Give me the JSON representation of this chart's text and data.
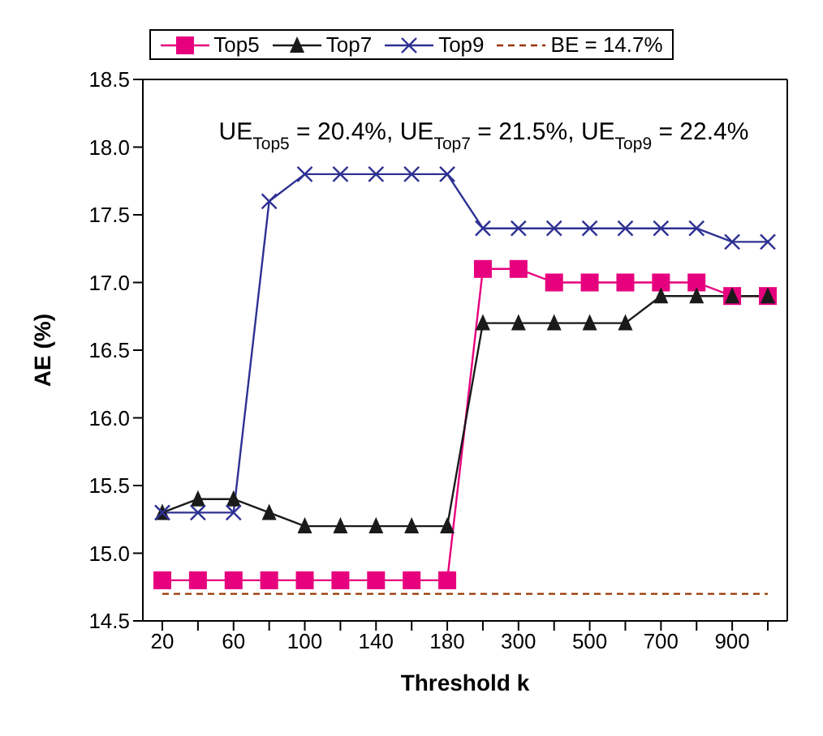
{
  "chart_data": {
    "type": "line",
    "xlabel": "Threshold k",
    "ylabel": "AE (%)",
    "categories": [
      "20",
      null,
      "60",
      null,
      "100",
      null,
      "140",
      null,
      "180",
      null,
      "300",
      null,
      "500",
      null,
      "700",
      null,
      "900",
      null
    ],
    "series": [
      {
        "name": "Top5",
        "color": "#e6007e",
        "marker": "square",
        "values": [
          14.8,
          14.8,
          14.8,
          14.8,
          14.8,
          14.8,
          14.8,
          14.8,
          14.8,
          17.1,
          17.1,
          17.0,
          17.0,
          17.0,
          17.0,
          17.0,
          16.9,
          16.9
        ]
      },
      {
        "name": "Top7",
        "color": "#1a1a1a",
        "marker": "triangle",
        "values": [
          15.3,
          15.4,
          15.4,
          15.3,
          15.2,
          15.2,
          15.2,
          15.2,
          15.2,
          16.7,
          16.7,
          16.7,
          16.7,
          16.7,
          16.9,
          16.9,
          16.9,
          16.9
        ]
      },
      {
        "name": "Top9",
        "color": "#2e3192",
        "marker": "cross",
        "values": [
          15.3,
          15.3,
          15.3,
          17.6,
          17.8,
          17.8,
          17.8,
          17.8,
          17.8,
          17.4,
          17.4,
          17.4,
          17.4,
          17.4,
          17.4,
          17.4,
          17.3,
          17.3
        ]
      },
      {
        "name": "BE = 14.7%",
        "color": "#993300",
        "marker": "none",
        "line_style": "dashed",
        "values": [
          14.7,
          14.7,
          14.7,
          14.7,
          14.7,
          14.7,
          14.7,
          14.7,
          14.7,
          14.7,
          14.7,
          14.7,
          14.7,
          14.7,
          14.7,
          14.7,
          14.7,
          14.7
        ]
      }
    ],
    "ylim": [
      14.5,
      18.5
    ],
    "yticks": [
      {
        "value": 14.5,
        "label": "14.5"
      },
      {
        "value": 15,
        "label": "15.0"
      },
      {
        "value": 15.5,
        "label": "15.5"
      },
      {
        "value": 16,
        "label": "16.0"
      },
      {
        "value": 16.5,
        "label": "16.5"
      },
      {
        "value": 17,
        "label": "17.0"
      },
      {
        "value": 17.5,
        "label": "17.5"
      },
      {
        "value": 18,
        "label": "18.0"
      },
      {
        "value": 18.5,
        "label": "18.5"
      }
    ],
    "annotations": [
      "UE$_{Top5}$ = 20.4%, UE$_{Top7}$ = 21.5%, UE$_{Top9}$ = 22.4%"
    ],
    "grid": false,
    "legend": "top"
  }
}
